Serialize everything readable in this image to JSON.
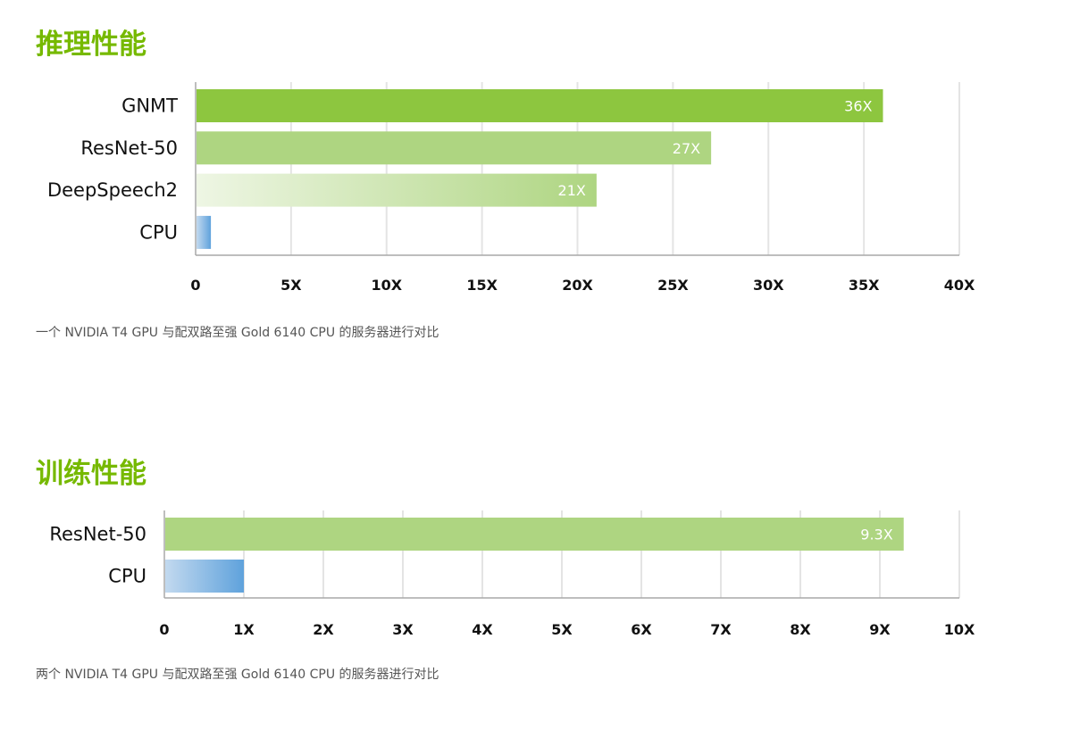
{
  "sections": [
    {
      "title": "推理性能",
      "note": "一个 NVIDIA T4 GPU 与配双路至强 Gold 6140 CPU 的服务器进行对比"
    },
    {
      "title": "训练性能",
      "note": "两个 NVIDIA T4 GPU 与配双路至强 Gold 6140 CPU 的服务器进行对比"
    }
  ],
  "colors": {
    "title": "#76b900",
    "gpu_dark": "#8dc63f",
    "gpu_light": "#aed581",
    "gpu_fade_start": "#eef6e4",
    "cpu_light": "#c2d9ef",
    "cpu_dark": "#5fa2dc"
  },
  "chart_data": [
    {
      "type": "bar",
      "orientation": "horizontal",
      "categories": [
        "GNMT",
        "ResNet-50",
        "DeepSpeech2",
        "CPU"
      ],
      "values": [
        36,
        27,
        21,
        0.8
      ],
      "value_labels": [
        "36X",
        "27X",
        "21X",
        ""
      ],
      "xlim": [
        0,
        40
      ],
      "ticks": [
        0,
        5,
        10,
        15,
        20,
        25,
        30,
        35,
        40
      ],
      "tick_labels": [
        "0",
        "5X",
        "10X",
        "15X",
        "20X",
        "25X",
        "30X",
        "35X",
        "40X"
      ],
      "bar_styles": [
        "gpu-dark",
        "gpu-light",
        "gpu-fade",
        "cpu"
      ],
      "grid": true
    },
    {
      "type": "bar",
      "orientation": "horizontal",
      "categories": [
        "ResNet-50",
        "CPU"
      ],
      "values": [
        9.3,
        1
      ],
      "value_labels": [
        "9.3X",
        ""
      ],
      "xlim": [
        0,
        10
      ],
      "ticks": [
        0,
        1,
        2,
        3,
        4,
        5,
        6,
        7,
        8,
        9,
        10
      ],
      "tick_labels": [
        "0",
        "1X",
        "2X",
        "3X",
        "4X",
        "5X",
        "6X",
        "7X",
        "8X",
        "9X",
        "10X"
      ],
      "bar_styles": [
        "gpu-light",
        "cpu"
      ],
      "grid": true
    }
  ]
}
